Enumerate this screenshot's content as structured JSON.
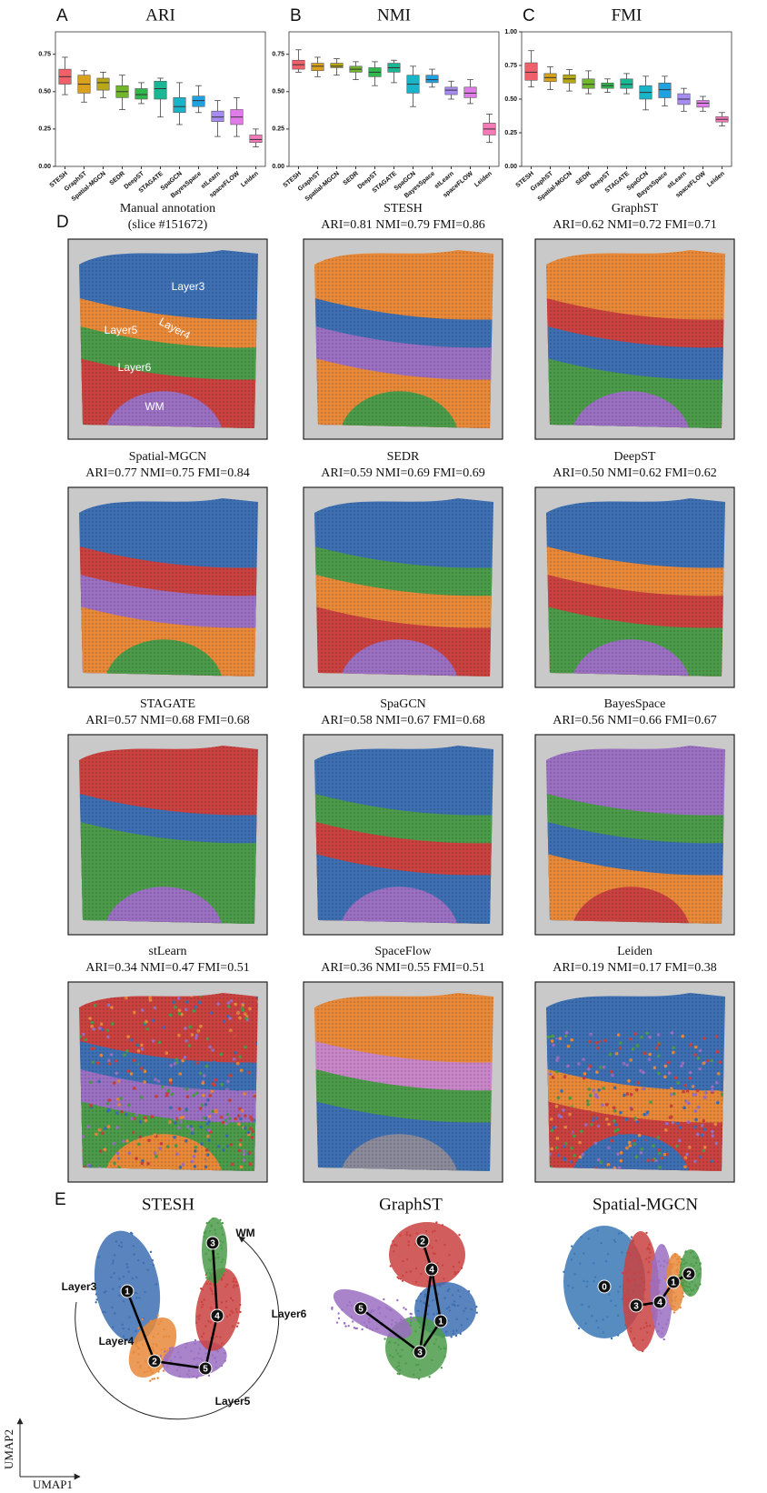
{
  "chart_data": [
    {
      "type": "box",
      "panel": "A",
      "title": "ARI",
      "categories": [
        "STESH",
        "GraphST",
        "Spatial-MGCN",
        "SEDR",
        "DeepST",
        "STAGATE",
        "SpaGCN",
        "BayesSpace",
        "stLearn",
        "spaceFLOW",
        "Leiden"
      ],
      "colors": [
        "#f0606a",
        "#d9a11c",
        "#b8a816",
        "#72b62c",
        "#2fb84c",
        "#19b894",
        "#1ab4c8",
        "#20a2e0",
        "#a68cf0",
        "#e07ce8",
        "#f57ab8"
      ],
      "whislo": [
        0.48,
        0.43,
        0.46,
        0.38,
        0.42,
        0.33,
        0.28,
        0.36,
        0.2,
        0.2,
        0.13
      ],
      "q1": [
        0.55,
        0.49,
        0.51,
        0.46,
        0.45,
        0.45,
        0.36,
        0.4,
        0.3,
        0.28,
        0.16
      ],
      "median": [
        0.6,
        0.55,
        0.56,
        0.5,
        0.48,
        0.52,
        0.4,
        0.44,
        0.33,
        0.33,
        0.18
      ],
      "q3": [
        0.65,
        0.61,
        0.59,
        0.54,
        0.52,
        0.57,
        0.46,
        0.47,
        0.37,
        0.38,
        0.21
      ],
      "whishi": [
        0.73,
        0.64,
        0.63,
        0.61,
        0.56,
        0.59,
        0.56,
        0.54,
        0.44,
        0.46,
        0.25
      ],
      "ylim": [
        0,
        0.9
      ],
      "yticks": [
        {
          "value": 0,
          "label": "0.00"
        },
        {
          "value": 0.25,
          "label": "0.25"
        },
        {
          "value": 0.5,
          "label": "0.50"
        },
        {
          "value": 0.75,
          "label": "0.75"
        }
      ]
    },
    {
      "type": "box",
      "panel": "B",
      "title": "NMI",
      "categories": [
        "STESH",
        "GraphST",
        "Spatial-MGCN",
        "SEDR",
        "DeepST",
        "STAGATE",
        "SpaGCN",
        "BayesSpace",
        "stLearn",
        "spaceFLOW",
        "Leiden"
      ],
      "colors": [
        "#f0606a",
        "#d9a11c",
        "#b8a816",
        "#72b62c",
        "#2fb84c",
        "#19b894",
        "#1ab4c8",
        "#20a2e0",
        "#a68cf0",
        "#e07ce8",
        "#f57ab8"
      ],
      "whislo": [
        0.63,
        0.6,
        0.61,
        0.58,
        0.54,
        0.56,
        0.4,
        0.53,
        0.45,
        0.42,
        0.16
      ],
      "q1": [
        0.65,
        0.64,
        0.66,
        0.63,
        0.6,
        0.63,
        0.49,
        0.56,
        0.48,
        0.46,
        0.21
      ],
      "median": [
        0.68,
        0.67,
        0.67,
        0.65,
        0.63,
        0.66,
        0.55,
        0.58,
        0.51,
        0.49,
        0.25
      ],
      "q3": [
        0.71,
        0.69,
        0.69,
        0.67,
        0.66,
        0.69,
        0.61,
        0.61,
        0.53,
        0.53,
        0.29
      ],
      "whishi": [
        0.78,
        0.73,
        0.72,
        0.7,
        0.7,
        0.71,
        0.67,
        0.65,
        0.57,
        0.58,
        0.35
      ],
      "ylim": [
        0,
        0.9
      ],
      "yticks": [
        {
          "value": 0,
          "label": "0.00"
        },
        {
          "value": 0.25,
          "label": "0.25"
        },
        {
          "value": 0.5,
          "label": "0.50"
        },
        {
          "value": 0.75,
          "label": "0.75"
        }
      ]
    },
    {
      "type": "box",
      "panel": "C",
      "title": "FMI",
      "categories": [
        "STESH",
        "GraphST",
        "Spatial-MGCN",
        "SEDR",
        "DeepST",
        "STAGATE",
        "SpaGCN",
        "BayesSpace",
        "stLearn",
        "spaceFLOW",
        "Leiden"
      ],
      "colors": [
        "#f0606a",
        "#d9a11c",
        "#b8a816",
        "#72b62c",
        "#2fb84c",
        "#19b894",
        "#1ab4c8",
        "#20a2e0",
        "#a68cf0",
        "#e07ce8",
        "#f57ab8"
      ],
      "whislo": [
        0.59,
        0.57,
        0.56,
        0.54,
        0.55,
        0.54,
        0.42,
        0.45,
        0.41,
        0.41,
        0.3
      ],
      "q1": [
        0.64,
        0.63,
        0.62,
        0.58,
        0.58,
        0.58,
        0.5,
        0.51,
        0.46,
        0.44,
        0.33
      ],
      "median": [
        0.7,
        0.66,
        0.65,
        0.61,
        0.6,
        0.61,
        0.55,
        0.57,
        0.5,
        0.47,
        0.35
      ],
      "q3": [
        0.77,
        0.69,
        0.68,
        0.65,
        0.62,
        0.65,
        0.6,
        0.62,
        0.54,
        0.49,
        0.37
      ],
      "whishi": [
        0.86,
        0.74,
        0.72,
        0.71,
        0.65,
        0.69,
        0.67,
        0.67,
        0.58,
        0.52,
        0.4
      ],
      "ylim": [
        0,
        1
      ],
      "yticks": [
        {
          "value": 0,
          "label": "0.00"
        },
        {
          "value": 0.25,
          "label": "0.25"
        },
        {
          "value": 0.5,
          "label": "0.50"
        },
        {
          "value": 0.75,
          "label": "0.75"
        },
        {
          "value": 1,
          "label": "1.00"
        }
      ]
    }
  ],
  "spatial": {
    "panel": "D",
    "maps": [
      {
        "title": "Manual annotation",
        "subtitle": "(slice #151672)",
        "labels": [
          "Layer3",
          "Layer4",
          "Layer5",
          "Layer6",
          "WM"
        ]
      },
      {
        "title": "STESH",
        "subtitle": "ARI=0.81 NMI=0.79 FMI=0.86"
      },
      {
        "title": "GraphST",
        "subtitle": "ARI=0.62 NMI=0.72 FMI=0.71"
      },
      {
        "title": "Spatial-MGCN",
        "subtitle": "ARI=0.77 NMI=0.75 FMI=0.84"
      },
      {
        "title": "SEDR",
        "subtitle": "ARI=0.59 NMI=0.69 FMI=0.69"
      },
      {
        "title": "DeepST",
        "subtitle": "ARI=0.50 NMI=0.62 FMI=0.62"
      },
      {
        "title": "STAGATE",
        "subtitle": "ARI=0.57 NMI=0.68 FMI=0.68"
      },
      {
        "title": "SpaGCN",
        "subtitle": "ARI=0.58 NMI=0.67 FMI=0.68"
      },
      {
        "title": "BayesSpace",
        "subtitle": "ARI=0.56 NMI=0.66 FMI=0.67"
      },
      {
        "title": "stLearn",
        "subtitle": "ARI=0.34 NMI=0.47 FMI=0.51"
      },
      {
        "title": "SpaceFlow",
        "subtitle": "ARI=0.36 NMI=0.55 FMI=0.51"
      },
      {
        "title": "Leiden",
        "subtitle": "ARI=0.19 NMI=0.17 FMI=0.38"
      }
    ]
  },
  "umap": {
    "panel": "E",
    "x_label": "UMAP1",
    "y_label": "UMAP2",
    "plots": [
      {
        "title": "STESH",
        "nodes": [
          1,
          2,
          3,
          4,
          5
        ],
        "labels": [
          "WM",
          "Layer3",
          "Layer6",
          "Layer4",
          "Layer5"
        ]
      },
      {
        "title": "GraphST",
        "nodes": [
          1,
          2,
          3,
          4,
          5
        ]
      },
      {
        "title": "Spatial-MGCN",
        "nodes": [
          0,
          1,
          2,
          3,
          4
        ]
      }
    ]
  }
}
